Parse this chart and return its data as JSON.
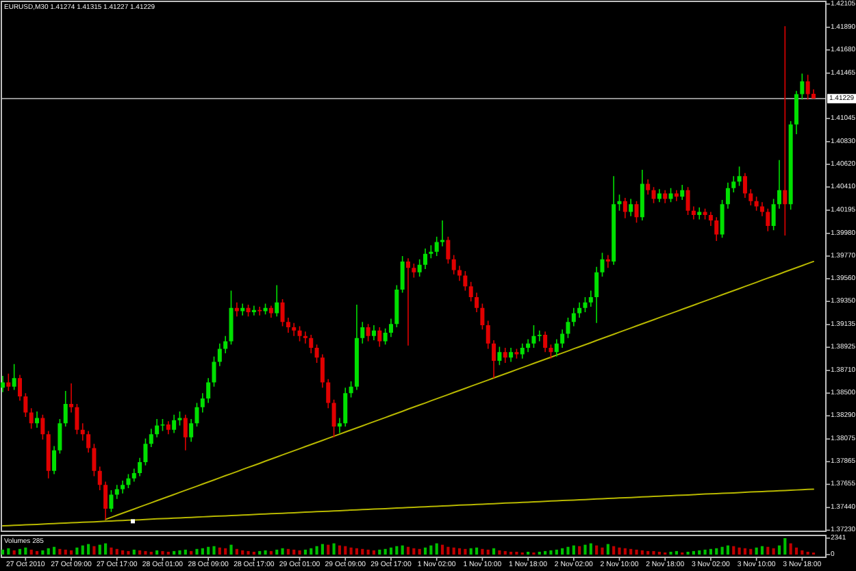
{
  "chart_data": [
    {
      "type": "candlestick",
      "title": "EURUSD,M30 1.41274 1.41315 1.41227 1.41229",
      "categories": [
        null,
        null,
        null,
        null,
        null,
        null,
        null,
        null,
        null,
        null,
        null,
        null,
        null,
        null,
        null,
        null,
        null,
        null,
        null,
        null,
        null,
        null,
        null,
        null,
        null,
        null,
        null,
        null,
        null,
        null,
        null,
        null,
        null,
        null,
        null,
        null,
        null,
        null,
        null,
        null,
        null,
        null,
        null,
        null,
        null,
        null,
        null,
        null,
        null,
        null,
        null,
        null,
        null,
        null,
        null,
        null,
        null,
        null,
        null,
        null,
        null,
        null,
        null,
        null,
        null,
        null,
        null,
        null,
        null,
        null,
        null,
        null,
        null,
        null,
        null,
        null,
        null,
        null,
        null,
        null,
        null,
        null,
        null,
        null,
        null,
        null,
        null,
        null,
        null,
        null,
        null,
        null,
        null,
        null,
        null,
        null,
        null,
        null,
        null,
        null,
        null,
        null,
        null,
        null,
        null,
        null,
        null,
        null,
        null,
        null,
        null,
        null,
        null,
        null,
        null,
        null,
        null,
        null,
        null,
        null,
        null,
        null,
        null,
        null,
        null,
        null,
        null,
        null,
        null,
        null,
        null,
        null,
        null,
        null,
        null,
        null,
        null,
        null,
        null,
        null,
        null,
        null,
        null
      ],
      "ohlc": [
        [
          1.3855,
          1.3866,
          1.3851,
          1.386
        ],
        [
          1.386,
          1.3868,
          1.3852,
          1.3856
        ],
        [
          1.3856,
          1.3877,
          1.3853,
          1.3864
        ],
        [
          1.3864,
          1.3867,
          1.3843,
          1.3847
        ],
        [
          1.3847,
          1.385,
          1.3828,
          1.3832
        ],
        [
          1.3832,
          1.3836,
          1.3817,
          1.3822
        ],
        [
          1.3822,
          1.3833,
          1.3818,
          1.3827
        ],
        [
          1.3827,
          1.383,
          1.3807,
          1.3812
        ],
        [
          1.3812,
          1.3815,
          1.3771,
          1.3778
        ],
        [
          1.3778,
          1.3801,
          1.3775,
          1.3797
        ],
        [
          1.3797,
          1.3826,
          1.3794,
          1.3822
        ],
        [
          1.3822,
          1.3852,
          1.3819,
          1.384
        ],
        [
          1.384,
          1.3859,
          1.3832,
          1.3837
        ],
        [
          1.3837,
          1.384,
          1.3812,
          1.3816
        ],
        [
          1.3816,
          1.3822,
          1.3806,
          1.3812
        ],
        [
          1.3812,
          1.3815,
          1.3795,
          1.3799
        ],
        [
          1.3799,
          1.3803,
          1.3773,
          1.3778
        ],
        [
          1.3778,
          1.3782,
          1.376,
          1.3765
        ],
        [
          1.3765,
          1.3768,
          1.3733,
          1.3743
        ],
        [
          1.3743,
          1.376,
          1.374,
          1.3756
        ],
        [
          1.3756,
          1.3765,
          1.3752,
          1.3761
        ],
        [
          1.3761,
          1.3769,
          1.3757,
          1.3765
        ],
        [
          1.3765,
          1.3775,
          1.3762,
          1.3771
        ],
        [
          1.3771,
          1.378,
          1.3768,
          1.3776
        ],
        [
          1.3776,
          1.379,
          1.3773,
          1.3786
        ],
        [
          1.3786,
          1.3808,
          1.3783,
          1.3803
        ],
        [
          1.3803,
          1.3817,
          1.38,
          1.3812
        ],
        [
          1.3812,
          1.3826,
          1.3809,
          1.382
        ],
        [
          1.382,
          1.3826,
          1.3815,
          1.3821
        ],
        [
          1.3821,
          1.3824,
          1.3812,
          1.3816
        ],
        [
          1.3816,
          1.383,
          1.3813,
          1.3825
        ],
        [
          1.3825,
          1.3833,
          1.382,
          1.3827
        ],
        [
          1.3827,
          1.383,
          1.3797,
          1.3809
        ],
        [
          1.3809,
          1.3826,
          1.3805,
          1.3822
        ],
        [
          1.3822,
          1.3841,
          1.3819,
          1.3837
        ],
        [
          1.3837,
          1.385,
          1.3832,
          1.3845
        ],
        [
          1.3845,
          1.3864,
          1.3841,
          1.386
        ],
        [
          1.386,
          1.3884,
          1.3856,
          1.3879
        ],
        [
          1.3879,
          1.3896,
          1.3875,
          1.3891
        ],
        [
          1.3891,
          1.3903,
          1.3887,
          1.3898
        ],
        [
          1.3898,
          1.3945,
          1.3895,
          1.3929
        ],
        [
          1.3929,
          1.3934,
          1.3921,
          1.3926
        ],
        [
          1.3926,
          1.3933,
          1.3922,
          1.3929
        ],
        [
          1.3929,
          1.3932,
          1.3921,
          1.3925
        ],
        [
          1.3925,
          1.3931,
          1.3922,
          1.3927
        ],
        [
          1.3927,
          1.393,
          1.3922,
          1.3926
        ],
        [
          1.3926,
          1.3933,
          1.3923,
          1.3929
        ],
        [
          1.3929,
          1.3931,
          1.392,
          1.3924
        ],
        [
          1.3924,
          1.395,
          1.3921,
          1.3934
        ],
        [
          1.3934,
          1.3937,
          1.3912,
          1.3916
        ],
        [
          1.3916,
          1.392,
          1.3906,
          1.3911
        ],
        [
          1.3911,
          1.3915,
          1.3903,
          1.3908
        ],
        [
          1.3908,
          1.3912,
          1.3898,
          1.3903
        ],
        [
          1.3903,
          1.3907,
          1.3896,
          1.3901
        ],
        [
          1.3901,
          1.3904,
          1.3887,
          1.3892
        ],
        [
          1.3892,
          1.3895,
          1.3878,
          1.3883
        ],
        [
          1.3883,
          1.3886,
          1.3855,
          1.386
        ],
        [
          1.386,
          1.3863,
          1.3836,
          1.3841
        ],
        [
          1.3841,
          1.3844,
          1.3809,
          1.3819
        ],
        [
          1.3819,
          1.3827,
          1.3813,
          1.3822
        ],
        [
          1.3822,
          1.3855,
          1.3819,
          1.385
        ],
        [
          1.385,
          1.3861,
          1.3846,
          1.3856
        ],
        [
          1.3856,
          1.3932,
          1.3853,
          1.3901
        ],
        [
          1.3901,
          1.3916,
          1.3896,
          1.3911
        ],
        [
          1.3911,
          1.3914,
          1.3898,
          1.3903
        ],
        [
          1.3903,
          1.3913,
          1.3899,
          1.3908
        ],
        [
          1.3908,
          1.3911,
          1.3893,
          1.3898
        ],
        [
          1.3898,
          1.391,
          1.3895,
          1.3906
        ],
        [
          1.3906,
          1.3919,
          1.3902,
          1.3914
        ],
        [
          1.3914,
          1.395,
          1.3911,
          1.3946
        ],
        [
          1.3946,
          1.3977,
          1.3943,
          1.3972
        ],
        [
          1.3972,
          1.3975,
          1.3894,
          1.3966
        ],
        [
          1.3966,
          1.397,
          1.3957,
          1.3962
        ],
        [
          1.3962,
          1.3974,
          1.3958,
          1.3969
        ],
        [
          1.3969,
          1.3984,
          1.3965,
          1.3979
        ],
        [
          1.3979,
          1.3987,
          1.3975,
          1.3981
        ],
        [
          1.3981,
          1.3995,
          1.3977,
          1.399
        ],
        [
          1.399,
          1.401,
          1.3986,
          1.3992
        ],
        [
          1.3992,
          1.3995,
          1.397,
          1.3974
        ],
        [
          1.3974,
          1.3978,
          1.396,
          1.3964
        ],
        [
          1.3964,
          1.3968,
          1.3954,
          1.3959
        ],
        [
          1.3959,
          1.3963,
          1.3945,
          1.3949
        ],
        [
          1.3949,
          1.3953,
          1.3935,
          1.3939
        ],
        [
          1.3939,
          1.3943,
          1.3925,
          1.3929
        ],
        [
          1.3929,
          1.3933,
          1.3909,
          1.3913
        ],
        [
          1.3913,
          1.3917,
          1.3891,
          1.3896
        ],
        [
          1.3896,
          1.3899,
          1.3864,
          1.388
        ],
        [
          1.388,
          1.3893,
          1.3876,
          1.3888
        ],
        [
          1.3888,
          1.3892,
          1.3878,
          1.3883
        ],
        [
          1.3883,
          1.3892,
          1.3879,
          1.3888
        ],
        [
          1.3888,
          1.3891,
          1.3882,
          1.3886
        ],
        [
          1.3886,
          1.3896,
          1.3882,
          1.3892
        ],
        [
          1.3892,
          1.39,
          1.3888,
          1.3896
        ],
        [
          1.3896,
          1.3913,
          1.3892,
          1.3903
        ],
        [
          1.3903,
          1.3908,
          1.3898,
          1.3904
        ],
        [
          1.3904,
          1.3907,
          1.3888,
          1.3892
        ],
        [
          1.3892,
          1.3895,
          1.3882,
          1.3888
        ],
        [
          1.3888,
          1.39,
          1.3884,
          1.3896
        ],
        [
          1.3896,
          1.3909,
          1.3892,
          1.3905
        ],
        [
          1.3905,
          1.392,
          1.3901,
          1.3916
        ],
        [
          1.3916,
          1.3929,
          1.3912,
          1.3924
        ],
        [
          1.3924,
          1.3934,
          1.392,
          1.3929
        ],
        [
          1.3929,
          1.3939,
          1.3925,
          1.3934
        ],
        [
          1.3934,
          1.3945,
          1.393,
          1.3939
        ],
        [
          1.3939,
          1.3967,
          1.3915,
          1.3962
        ],
        [
          1.3962,
          1.398,
          1.3958,
          1.3974
        ],
        [
          1.3974,
          1.3978,
          1.3966,
          1.3972
        ],
        [
          1.3972,
          1.4051,
          1.3969,
          1.4025
        ],
        [
          1.4025,
          1.4034,
          1.4019,
          1.4028
        ],
        [
          1.4028,
          1.4031,
          1.4012,
          1.4018
        ],
        [
          1.4018,
          1.403,
          1.4014,
          1.4025
        ],
        [
          1.4025,
          1.4028,
          1.4008,
          1.4013
        ],
        [
          1.4013,
          1.4057,
          1.401,
          1.4044
        ],
        [
          1.4044,
          1.4048,
          1.4034,
          1.4038
        ],
        [
          1.4038,
          1.4041,
          1.4026,
          1.403
        ],
        [
          1.403,
          1.4039,
          1.4027,
          1.4035
        ],
        [
          1.4035,
          1.4038,
          1.4026,
          1.403
        ],
        [
          1.403,
          1.404,
          1.4027,
          1.4035
        ],
        [
          1.4035,
          1.4038,
          1.4028,
          1.4032
        ],
        [
          1.4032,
          1.4043,
          1.4029,
          1.4038
        ],
        [
          1.4038,
          1.4041,
          1.4015,
          1.4019
        ],
        [
          1.4019,
          1.4023,
          1.4011,
          1.4015
        ],
        [
          1.4015,
          1.4022,
          1.4011,
          1.4018
        ],
        [
          1.4018,
          1.4021,
          1.4011,
          1.4015
        ],
        [
          1.4015,
          1.4018,
          1.4005,
          1.401
        ],
        [
          1.401,
          1.4013,
          1.3991,
          1.3997
        ],
        [
          1.3997,
          1.4029,
          1.3994,
          1.4025
        ],
        [
          1.4025,
          1.4045,
          1.4021,
          1.404
        ],
        [
          1.404,
          1.4051,
          1.4036,
          1.4046
        ],
        [
          1.4046,
          1.406,
          1.4042,
          1.4051
        ],
        [
          1.4051,
          1.4054,
          1.4031,
          1.4035
        ],
        [
          1.4035,
          1.4039,
          1.4024,
          1.4028
        ],
        [
          1.4028,
          1.4032,
          1.4019,
          1.4023
        ],
        [
          1.4023,
          1.4027,
          1.4014,
          1.4018
        ],
        [
          1.4018,
          1.4021,
          1.4,
          1.4005
        ],
        [
          1.4005,
          1.403,
          1.4001,
          1.4025
        ],
        [
          1.4025,
          1.4066,
          1.4021,
          1.4038
        ],
        [
          1.4038,
          1.419,
          1.3996,
          1.4025
        ],
        [
          1.4025,
          1.4102,
          1.402,
          1.4099
        ],
        [
          1.4099,
          1.413,
          1.409,
          1.4127
        ],
        [
          1.4127,
          1.4146,
          1.4122,
          1.4139
        ],
        [
          1.4139,
          1.4145,
          1.4122,
          1.4127
        ],
        [
          1.41274,
          1.41315,
          1.41227,
          1.41229
        ]
      ],
      "colors": [
        "#00e000",
        "#e00000",
        "#00e000",
        "#e00000",
        "#e00000",
        "#e00000",
        "#00e000",
        "#e00000",
        "#e00000",
        "#00e000",
        "#00e000",
        "#00e000",
        "#e00000",
        "#e00000",
        "#e00000",
        "#e00000",
        "#e00000",
        "#e00000",
        "#e00000",
        "#00e000",
        "#00e000",
        "#00e000",
        "#00e000",
        "#00e000",
        "#00e000",
        "#00e000",
        "#00e000",
        "#00e000",
        "#00e000",
        "#e00000",
        "#00e000",
        "#00e000",
        "#e00000",
        "#00e000",
        "#00e000",
        "#00e000",
        "#00e000",
        "#00e000",
        "#00e000",
        "#00e000",
        "#00e000",
        "#e00000",
        "#00e000",
        "#e00000",
        "#00e000",
        "#e00000",
        "#00e000",
        "#e00000",
        "#00e000",
        "#e00000",
        "#e00000",
        "#e00000",
        "#e00000",
        "#e00000",
        "#e00000",
        "#e00000",
        "#e00000",
        "#e00000",
        "#e00000",
        "#00e000",
        "#00e000",
        "#00e000",
        "#00e000",
        "#00e000",
        "#e00000",
        "#00e000",
        "#e00000",
        "#00e000",
        "#00e000",
        "#00e000",
        "#00e000",
        "#e00000",
        "#e00000",
        "#00e000",
        "#00e000",
        "#00e000",
        "#00e000",
        "#00e000",
        "#e00000",
        "#e00000",
        "#e00000",
        "#e00000",
        "#e00000",
        "#e00000",
        "#e00000",
        "#e00000",
        "#e00000",
        "#00e000",
        "#e00000",
        "#00e000",
        "#e00000",
        "#00e000",
        "#00e000",
        "#00e000",
        "#00e000",
        "#e00000",
        "#e00000",
        "#00e000",
        "#00e000",
        "#00e000",
        "#00e000",
        "#00e000",
        "#00e000",
        "#00e000",
        "#00e000",
        "#00e000",
        "#e00000",
        "#00e000",
        "#00e000",
        "#e00000",
        "#00e000",
        "#e00000",
        "#00e000",
        "#e00000",
        "#e00000",
        "#00e000",
        "#e00000",
        "#00e000",
        "#e00000",
        "#00e000",
        "#e00000",
        "#e00000",
        "#00e000",
        "#e00000",
        "#e00000",
        "#e00000",
        "#00e000",
        "#00e000",
        "#00e000",
        "#00e000",
        "#e00000",
        "#e00000",
        "#e00000",
        "#e00000",
        "#e00000",
        "#00e000",
        "#00e000",
        "#e00000",
        "#00e000",
        "#00e000",
        "#00e000",
        "#e00000",
        "#e00000"
      ],
      "series": [
        {
          "type": "line",
          "color": "#b8b800",
          "values": [
            null,
            null,
            null,
            null,
            null,
            null,
            null,
            null,
            null,
            null,
            null,
            null,
            null,
            null,
            null,
            null,
            null,
            null,
            1.3733,
            1.37349,
            1.37369,
            1.37388,
            1.37407,
            1.37426,
            1.37446,
            1.37465,
            1.37484,
            1.37504,
            1.37523,
            1.37542,
            1.37561,
            1.37581,
            1.376,
            1.37619,
            1.37638,
            1.37658,
            1.37677,
            1.37696,
            1.37716,
            1.37735,
            1.37754,
            1.37773,
            1.37793,
            1.37812,
            1.37831,
            1.3785,
            1.3787,
            1.37889,
            1.37908,
            1.37928,
            1.37947,
            1.37966,
            1.37985,
            1.38005,
            1.38024,
            1.38043,
            1.38062,
            1.38082,
            1.38101,
            1.3812,
            1.3814,
            1.38159,
            1.38178,
            1.38197,
            1.38217,
            1.38236,
            1.38255,
            1.38274,
            1.38294,
            1.38313,
            1.38332,
            1.38352,
            1.38371,
            1.3839,
            1.38409,
            1.38429,
            1.38448,
            1.38467,
            1.38486,
            1.38506,
            1.38525,
            1.38544,
            1.38564,
            1.38583,
            1.38602,
            1.38621,
            1.38641,
            1.3866,
            1.38679,
            1.38698,
            1.38718,
            1.38737,
            1.38756,
            1.38776,
            1.38795,
            1.38814,
            1.38833,
            1.38853,
            1.38872,
            1.38891,
            1.38911,
            1.3893,
            1.38949,
            1.38968,
            1.38988,
            1.39007,
            1.39026,
            1.39045,
            1.39065,
            1.39084,
            1.39103,
            1.39123,
            1.39142,
            1.39161,
            1.3918,
            1.392,
            1.39219,
            1.39238,
            1.39257,
            1.39277,
            1.39296,
            1.39315,
            1.39335,
            1.39354,
            1.39373,
            1.39392,
            1.39412,
            1.39431,
            1.3945,
            1.39469,
            1.39489,
            1.39508,
            1.39527,
            1.39547,
            1.39566,
            1.39585,
            1.39604,
            1.39624,
            1.39643,
            1.39662,
            1.39681,
            1.39701,
            1.3972
          ]
        },
        {
          "type": "line",
          "color": "#b8b800",
          "values": [
            1.3727,
            1.37272,
            1.37275,
            1.37277,
            1.3728,
            1.37282,
            1.37284,
            1.37287,
            1.37289,
            1.37292,
            1.37294,
            1.37296,
            1.37299,
            1.37301,
            1.37304,
            1.37306,
            1.37308,
            1.37311,
            1.37313,
            1.37315,
            1.37318,
            1.3732,
            1.37323,
            1.37325,
            1.37327,
            1.3733,
            1.37332,
            1.37335,
            1.37337,
            1.37339,
            1.37342,
            1.37344,
            1.37347,
            1.37349,
            1.37351,
            1.37354,
            1.37356,
            1.37359,
            1.37361,
            1.37363,
            1.37366,
            1.37368,
            1.37371,
            1.37373,
            1.37375,
            1.37378,
            1.3738,
            1.37383,
            1.37385,
            1.37387,
            1.3739,
            1.37392,
            1.37395,
            1.37397,
            1.37399,
            1.37402,
            1.37404,
            1.37406,
            1.37409,
            1.37411,
            1.37414,
            1.37416,
            1.37418,
            1.37421,
            1.37423,
            1.37426,
            1.37428,
            1.3743,
            1.37433,
            1.37435,
            1.37438,
            1.3744,
            1.37442,
            1.37445,
            1.37447,
            1.3745,
            1.37452,
            1.37454,
            1.37457,
            1.37459,
            1.37462,
            1.37464,
            1.37466,
            1.37469,
            1.37471,
            1.37474,
            1.37476,
            1.37478,
            1.37481,
            1.37483,
            1.37485,
            1.37488,
            1.3749,
            1.37493,
            1.37495,
            1.37497,
            1.375,
            1.37502,
            1.37505,
            1.37507,
            1.37509,
            1.37512,
            1.37514,
            1.37517,
            1.37519,
            1.37521,
            1.37524,
            1.37526,
            1.37529,
            1.37531,
            1.37533,
            1.37536,
            1.37538,
            1.37541,
            1.37543,
            1.37545,
            1.37548,
            1.3755,
            1.37553,
            1.37555,
            1.37557,
            1.3756,
            1.37562,
            1.37565,
            1.37567,
            1.37569,
            1.37572,
            1.37574,
            1.37576,
            1.37579,
            1.37581,
            1.37584,
            1.37586,
            1.37588,
            1.37591,
            1.37593,
            1.37596,
            1.37598,
            1.376,
            1.37603,
            1.37605,
            1.37608,
            1.3761
          ]
        }
      ],
      "ref_lines": [
        {
          "axis": "y",
          "value": 1.41229,
          "label": "1.41229",
          "color": "#c0c0c0"
        }
      ],
      "ylim": [
        1.3722,
        1.4213
      ],
      "yticks": [
        {
          "value": 1.3723,
          "label": "1.37230"
        },
        {
          "value": 1.3744,
          "label": "1.37440"
        },
        1.37655,
        1.37865,
        1.38075,
        {
          "value": 1.3829,
          "label": "1.38290"
        },
        {
          "value": 1.385,
          "label": "1.38500"
        },
        {
          "value": 1.3871,
          "label": "1.38710"
        },
        1.38925,
        1.39135,
        {
          "value": 1.3935,
          "label": "1.39350"
        },
        {
          "value": 1.3956,
          "label": "1.39560"
        },
        {
          "value": 1.3977,
          "label": "1.39770"
        },
        {
          "value": 1.3998,
          "label": "1.39980"
        },
        1.40195,
        {
          "value": 1.4041,
          "label": "1.40410"
        },
        {
          "value": 1.4062,
          "label": "1.40620"
        },
        {
          "value": 1.4083,
          "label": "1.40830"
        },
        1.41045,
        1.41465,
        {
          "value": 1.4168,
          "label": "1.41680"
        },
        {
          "value": 1.4189,
          "label": "1.41890"
        },
        1.42105
      ]
    },
    {
      "type": "bar",
      "title": "Volumes 285",
      "categories": [
        null,
        null,
        null,
        null,
        "27 Oct 2010",
        null,
        null,
        null,
        null,
        null,
        null,
        null,
        "27 Oct 09:00",
        null,
        null,
        null,
        null,
        null,
        null,
        null,
        "27 Oct 17:00",
        null,
        null,
        null,
        null,
        null,
        null,
        null,
        "28 Oct 01:00",
        null,
        null,
        null,
        null,
        null,
        null,
        null,
        "28 Oct 09:00",
        null,
        null,
        null,
        null,
        null,
        null,
        null,
        "28 Oct 17:00",
        null,
        null,
        null,
        null,
        null,
        null,
        null,
        "29 Oct 01:00",
        null,
        null,
        null,
        null,
        null,
        null,
        null,
        "29 Oct 09:00",
        null,
        null,
        null,
        null,
        null,
        null,
        null,
        "29 Oct 17:00",
        null,
        null,
        null,
        null,
        null,
        null,
        null,
        "1 Nov 02:00",
        null,
        null,
        null,
        null,
        null,
        null,
        null,
        "1 Nov 10:00",
        null,
        null,
        null,
        null,
        null,
        null,
        null,
        "1 Nov 18:00",
        null,
        null,
        null,
        null,
        null,
        null,
        null,
        "2 Nov 02:00",
        null,
        null,
        null,
        null,
        null,
        null,
        null,
        "2 Nov 10:00",
        null,
        null,
        null,
        null,
        null,
        null,
        null,
        "2 Nov 18:00",
        null,
        null,
        null,
        null,
        null,
        null,
        null,
        "3 Nov 02:00",
        null,
        null,
        null,
        null,
        null,
        null,
        null,
        "3 Nov 10:00",
        null,
        null,
        null,
        null,
        null,
        null,
        null,
        "3 Nov 18:00",
        null,
        null
      ],
      "values": [
        700,
        900,
        600,
        800,
        1000,
        700,
        500,
        600,
        900,
        1100,
        800,
        700,
        600,
        1000,
        1300,
        1500,
        1200,
        1400,
        1600,
        1000,
        800,
        600,
        500,
        700,
        600,
        500,
        400,
        600,
        500,
        400,
        500,
        600,
        700,
        500,
        800,
        900,
        1100,
        1200,
        1000,
        900,
        1400,
        800,
        600,
        500,
        400,
        500,
        600,
        500,
        700,
        900,
        800,
        700,
        600,
        700,
        900,
        1200,
        1500,
        1400,
        1600,
        1300,
        1200,
        1000,
        900,
        800,
        700,
        600,
        700,
        800,
        1000,
        1200,
        1300,
        1100,
        900,
        800,
        1000,
        1300,
        1600,
        1400,
        1100,
        1000,
        900,
        800,
        900,
        1000,
        800,
        700,
        900,
        600,
        500,
        400,
        400,
        300,
        400,
        300,
        400,
        500,
        600,
        700,
        900,
        1100,
        1300,
        1200,
        1400,
        1600,
        1300,
        1000,
        1500,
        1200,
        1000,
        900,
        800,
        700,
        600,
        500,
        500,
        400,
        300,
        400,
        500,
        300,
        400,
        500,
        600,
        700,
        800,
        900,
        1100,
        1300,
        1200,
        1000,
        900,
        800,
        1000,
        1200,
        1100,
        900,
        1300,
        2341,
        1600,
        1000,
        600,
        400,
        285
      ],
      "colors": [
        "#00c000",
        "#00c000",
        "#c00000",
        "#00c000",
        "#00c000",
        "#c00000",
        "#c00000",
        "#00c000",
        "#00c000",
        "#00c000",
        "#c00000",
        "#c00000",
        "#c00000",
        "#00c000",
        "#00c000",
        "#00c000",
        "#c00000",
        "#00c000",
        "#00c000",
        "#c00000",
        "#c00000",
        "#c00000",
        "#c00000",
        "#00c000",
        "#c00000",
        "#c00000",
        "#c00000",
        "#00c000",
        "#c00000",
        "#c00000",
        "#00c000",
        "#00c000",
        "#00c000",
        "#c00000",
        "#00c000",
        "#00c000",
        "#00c000",
        "#00c000",
        "#c00000",
        "#c00000",
        "#00c000",
        "#c00000",
        "#c00000",
        "#c00000",
        "#c00000",
        "#00c000",
        "#00c000",
        "#c00000",
        "#00c000",
        "#00c000",
        "#c00000",
        "#c00000",
        "#c00000",
        "#00c000",
        "#00c000",
        "#00c000",
        "#00c000",
        "#c00000",
        "#00c000",
        "#c00000",
        "#c00000",
        "#c00000",
        "#c00000",
        "#c00000",
        "#c00000",
        "#c00000",
        "#00c000",
        "#00c000",
        "#00c000",
        "#00c000",
        "#00c000",
        "#c00000",
        "#c00000",
        "#c00000",
        "#00c000",
        "#00c000",
        "#00c000",
        "#c00000",
        "#c00000",
        "#c00000",
        "#c00000",
        "#c00000",
        "#00c000",
        "#00c000",
        "#c00000",
        "#c00000",
        "#00c000",
        "#c00000",
        "#c00000",
        "#c00000",
        "#c00000",
        "#c00000",
        "#00c000",
        "#c00000",
        "#00c000",
        "#00c000",
        "#00c000",
        "#00c000",
        "#00c000",
        "#00c000",
        "#00c000",
        "#c00000",
        "#00c000",
        "#00c000",
        "#c00000",
        "#c00000",
        "#00c000",
        "#c00000",
        "#c00000",
        "#c00000",
        "#c00000",
        "#c00000",
        "#c00000",
        "#c00000",
        "#c00000",
        "#c00000",
        "#c00000",
        "#00c000",
        "#00c000",
        "#c00000",
        "#00c000",
        "#00c000",
        "#00c000",
        "#00c000",
        "#00c000",
        "#00c000",
        "#00c000",
        "#00c000",
        "#c00000",
        "#c00000",
        "#c00000",
        "#c00000",
        "#00c000",
        "#00c000",
        "#c00000",
        "#c00000",
        "#00c000",
        "#00c000",
        "#c00000",
        "#c00000",
        "#c00000",
        "#c00000",
        "#c00000"
      ],
      "ylim": [
        0,
        2341
      ],
      "yticks": [
        0,
        2341
      ]
    }
  ]
}
